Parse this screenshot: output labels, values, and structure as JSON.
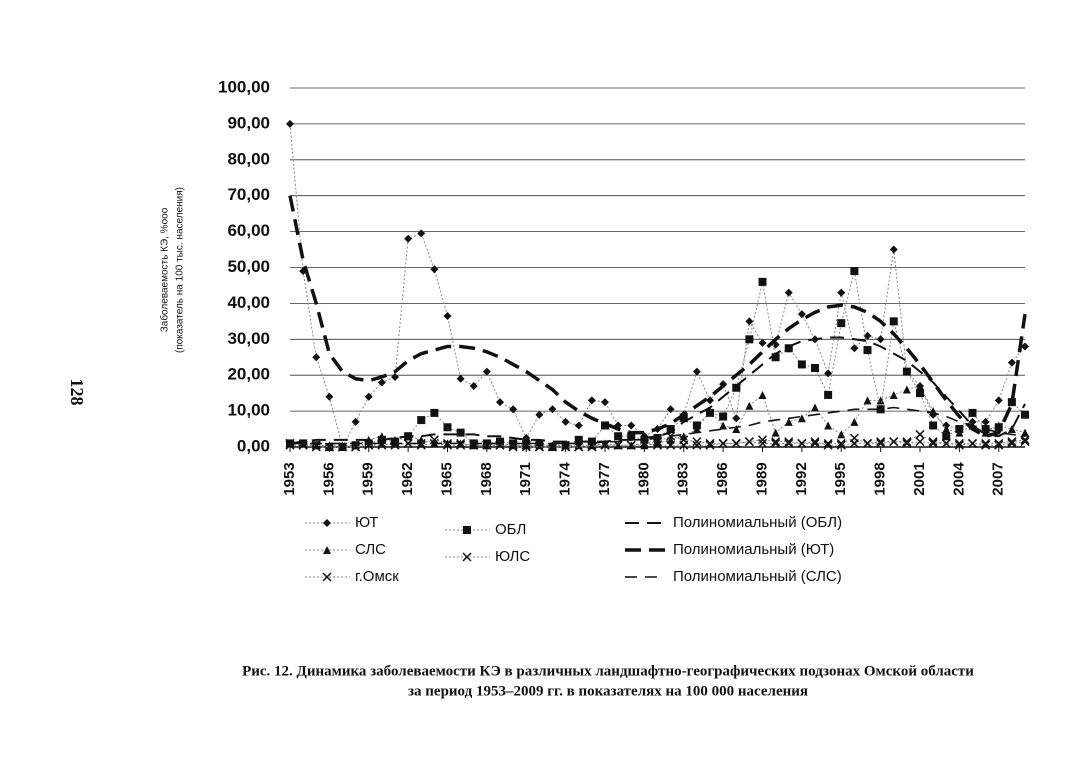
{
  "page_number": "128",
  "chart_data": {
    "type": "line",
    "ylabel": [
      "Заболеваемость КЭ, %ооо",
      "(показатель на 100 тыс. населения)"
    ],
    "caption": [
      "Рис. 12. Динамика заболеваемости КЭ в различных ландшафтно-географических подзонах Омской области",
      "за период 1953–2009 гг. в показателях на 100 000 населения"
    ],
    "x": [
      1953,
      1954,
      1955,
      1956,
      1957,
      1958,
      1959,
      1960,
      1961,
      1962,
      1963,
      1964,
      1965,
      1966,
      1967,
      1968,
      1969,
      1970,
      1971,
      1972,
      1973,
      1974,
      1975,
      1976,
      1977,
      1978,
      1979,
      1980,
      1981,
      1982,
      1983,
      1984,
      1985,
      1986,
      1987,
      1988,
      1989,
      1990,
      1991,
      1992,
      1993,
      1994,
      1995,
      1996,
      1997,
      1998,
      1999,
      2000,
      2001,
      2002,
      2003,
      2004,
      2005,
      2006,
      2007,
      2008,
      2009
    ],
    "xlim": [
      1953,
      2009
    ],
    "xticks": [
      1953,
      1956,
      1959,
      1962,
      1965,
      1968,
      1971,
      1974,
      1977,
      1980,
      1983,
      1986,
      1989,
      1992,
      1995,
      1998,
      2001,
      2004,
      2007
    ],
    "ylim": [
      0,
      100
    ],
    "yticks": [
      {
        "value": 0,
        "label": "0,00"
      },
      {
        "value": 10,
        "label": "10,00"
      },
      {
        "value": 20,
        "label": "20,00"
      },
      {
        "value": 30,
        "label": "30,00"
      },
      {
        "value": 40,
        "label": "40,00"
      },
      {
        "value": 50,
        "label": "50,00"
      },
      {
        "value": 60,
        "label": "60,00"
      },
      {
        "value": 70,
        "label": "70,00"
      },
      {
        "value": 80,
        "label": "80,00"
      },
      {
        "value": 90,
        "label": "90,00"
      },
      {
        "value": 100,
        "label": "100,00"
      }
    ],
    "grid": true,
    "series": [
      {
        "name": "ЮТ",
        "color": "#888888",
        "marker": "diamond",
        "values": [
          90,
          49,
          25,
          14,
          0,
          7,
          14,
          18,
          19.5,
          58,
          59.5,
          49.5,
          36.5,
          19,
          17,
          21,
          12.5,
          10.5,
          2.5,
          9,
          10.5,
          7,
          6,
          13,
          12.5,
          6,
          6,
          3,
          5,
          10.5,
          9,
          21,
          13,
          17.5,
          8,
          35,
          29,
          28.5,
          43,
          37,
          30,
          20.5,
          43,
          27.5,
          31,
          30,
          55,
          21,
          17,
          9,
          6,
          5,
          7,
          7,
          13,
          23.5,
          28
        ]
      },
      {
        "name": "СЛС",
        "color": "#888888",
        "marker": "triangle",
        "values": [
          1,
          1,
          0.5,
          0.5,
          0.5,
          0.5,
          2,
          3,
          2,
          3,
          2,
          1,
          1,
          1,
          0.5,
          0.5,
          1,
          0.5,
          0.5,
          0.5,
          0.5,
          0.5,
          0.5,
          0.5,
          1,
          0.5,
          0.5,
          0.5,
          1,
          2,
          3,
          5,
          10,
          6,
          5,
          11.5,
          14.5,
          4,
          7,
          8,
          11,
          6,
          3.5,
          7,
          13,
          13,
          14.5,
          16,
          17,
          10,
          5,
          4,
          6,
          4,
          6,
          5,
          4
        ]
      },
      {
        "name": "г.Омск",
        "color": "#888888",
        "marker": "cross",
        "values": [
          0.5,
          0.5,
          0,
          0,
          0,
          0,
          0.5,
          1,
          0.5,
          1,
          0.5,
          1,
          0.5,
          0.5,
          0.5,
          0.5,
          0.5,
          0,
          0,
          0,
          0,
          0,
          0,
          0,
          0.5,
          0.5,
          0.5,
          1,
          0.5,
          0.5,
          0.5,
          0.5,
          0.5,
          1,
          1,
          1.5,
          2,
          1.5,
          1.5,
          1,
          1.5,
          0.5,
          0.5,
          1,
          1,
          1.5,
          1.5,
          1.5,
          3.5,
          1.5,
          1,
          0.5,
          1,
          0.5,
          0.5,
          1,
          1.5
        ]
      },
      {
        "name": "ОБЛ",
        "color": "#888888",
        "marker": "square",
        "values": [
          1,
          1,
          0.5,
          0,
          0,
          0.5,
          1,
          2,
          1.5,
          3,
          7.5,
          9.5,
          5.5,
          4,
          1,
          1,
          1.5,
          1,
          1,
          1,
          0,
          0.5,
          2,
          1.5,
          6,
          3,
          3,
          2,
          2.5,
          5,
          8,
          6,
          9.5,
          8.5,
          16.5,
          30,
          46,
          25,
          27.5,
          23,
          22,
          14.5,
          34.5,
          49,
          27,
          10.5,
          35,
          21,
          15,
          6,
          3,
          5,
          9.5,
          5,
          5.5,
          12.5,
          9
        ]
      },
      {
        "name": "ЮЛС",
        "color": "#888888",
        "marker": "cross",
        "values": [
          1,
          0.5,
          0.5,
          0,
          0,
          0,
          0.5,
          0.5,
          1,
          1,
          1,
          2,
          1,
          1,
          0.5,
          0.5,
          0.5,
          0.5,
          0.5,
          0,
          0,
          0,
          0,
          0.5,
          0.5,
          0.5,
          0.5,
          1,
          1.5,
          3,
          2,
          1.5,
          1,
          1,
          1,
          1.5,
          1,
          1,
          1,
          1,
          1,
          1,
          1,
          2.5,
          1,
          1,
          1.5,
          1,
          1.5,
          1,
          1,
          1,
          1,
          1,
          1,
          1.5,
          2
        ]
      },
      {
        "name": "Полиномиальный (ОБЛ)",
        "color": "#111111",
        "dash": "14 8",
        "width": 2,
        "values": [
          1,
          1.5,
          2,
          2,
          2,
          2,
          2,
          2,
          2.5,
          3,
          3,
          3.5,
          3.5,
          3.5,
          3.5,
          3,
          3,
          2.5,
          2,
          2,
          1.5,
          1.5,
          1.5,
          1.5,
          1.5,
          2,
          2,
          2.5,
          3,
          4,
          7,
          9,
          11,
          14,
          17,
          20,
          23,
          26,
          28,
          29.5,
          30,
          30.5,
          30.5,
          30,
          29.5,
          28,
          26,
          24,
          21,
          18,
          14,
          10,
          6,
          3.5,
          3,
          5,
          12
        ]
      },
      {
        "name": "Полиномиальный (ЮТ)",
        "color": "#111111",
        "dash": "16 8",
        "width": 3.5,
        "values": [
          70,
          52,
          40,
          26,
          21,
          19,
          18.5,
          19.5,
          21,
          24,
          26,
          27,
          28,
          28,
          27.5,
          26.5,
          25,
          23,
          21,
          18.5,
          16,
          12.5,
          10,
          8,
          6.5,
          5,
          4,
          4,
          5,
          6.5,
          9,
          11.5,
          14,
          17,
          20,
          23,
          26.5,
          30,
          33,
          35.5,
          37.5,
          39,
          39.5,
          39,
          37.5,
          35,
          31.5,
          27.5,
          23,
          18,
          13,
          8.5,
          5,
          3,
          4,
          12,
          37
        ]
      },
      {
        "name": "Полиномиальный (СЛС)",
        "color": "#111111",
        "dash": "12 8",
        "width": 1.6,
        "values": [
          1,
          1,
          1,
          1,
          1,
          1,
          1,
          1,
          1,
          1,
          1,
          1,
          1,
          1,
          1,
          1,
          1,
          1,
          1,
          1,
          1,
          1,
          1,
          1,
          1.5,
          1.5,
          2,
          2,
          2.5,
          3,
          3.5,
          4,
          4.5,
          5,
          5.5,
          6,
          7,
          7.5,
          8,
          8.5,
          9,
          9.5,
          10,
          10.5,
          10.5,
          10.5,
          11,
          10.5,
          10,
          9.5,
          8.5,
          7,
          6,
          5,
          4,
          3.5,
          3
        ]
      }
    ]
  }
}
